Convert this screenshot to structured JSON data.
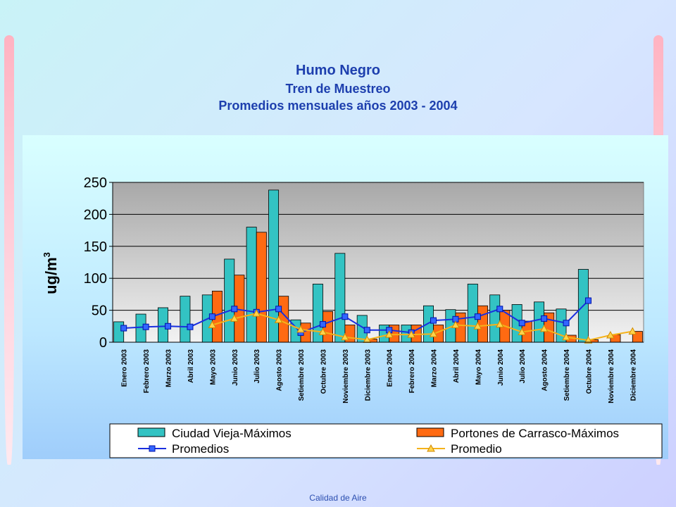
{
  "title": "Humo Negro",
  "subtitle": "Tren de Muestreo",
  "subtitle2": "Promedios mensuales años 2003 - 2004",
  "footer": "Calidad de Aire",
  "chart_data": {
    "type": "bar",
    "ylabel": "ug/m",
    "ylabel_sup": "3",
    "ylim": [
      0,
      250
    ],
    "yticks": [
      0,
      50,
      100,
      150,
      200,
      250
    ],
    "grid": true,
    "legend_position": "bottom",
    "categories": [
      "Enero 2003",
      "Febrero 2003",
      "Marzo 2003",
      "Abril 2003",
      "Mayo 2003",
      "Junio 2003",
      "Julio 2003",
      "Agosto 2003",
      "Setiembre 2003",
      "Octubre 2003",
      "Noviembre 2003",
      "Diciembre 2003",
      "Enero 2004",
      "Febrero 2004",
      "Marzo 2004",
      "Abril 2004",
      "Mayo 2004",
      "Junio 2004",
      "Julio 2004",
      "Agosto 2004",
      "Setiembre 2004",
      "Octubre 2004",
      "Noviembre 2004",
      "Diciembre 2004"
    ],
    "series": [
      {
        "name": "Ciudad Vieja-Máximos",
        "kind": "bar",
        "color": "#33c3c3",
        "values": [
          32,
          44,
          54,
          72,
          74,
          130,
          180,
          238,
          35,
          91,
          139,
          42,
          27,
          27,
          57,
          51,
          91,
          74,
          59,
          63,
          52,
          114,
          null,
          null
        ]
      },
      {
        "name": "Portones de Carrasco-Máximos",
        "kind": "bar",
        "color": "#ff6a12",
        "values": [
          null,
          null,
          null,
          null,
          80,
          105,
          172,
          72,
          30,
          48,
          27,
          5,
          27,
          27,
          27,
          46,
          57,
          50,
          33,
          46,
          11,
          4,
          12,
          17
        ]
      },
      {
        "name": "Promedios",
        "kind": "line",
        "color": "#1a2fe0",
        "marker": "square",
        "values": [
          22,
          24,
          25,
          24,
          40,
          52,
          47,
          52,
          15,
          28,
          40,
          19,
          19,
          15,
          34,
          36,
          40,
          52,
          30,
          37,
          30,
          65,
          null,
          null
        ]
      },
      {
        "name": "Promedio",
        "kind": "line",
        "color": "#f5b21a",
        "marker": "triangle",
        "values": [
          null,
          null,
          null,
          null,
          27,
          37,
          45,
          35,
          20,
          16,
          8,
          4,
          12,
          12,
          13,
          27,
          25,
          28,
          16,
          21,
          8,
          3,
          11,
          17
        ]
      }
    ]
  }
}
